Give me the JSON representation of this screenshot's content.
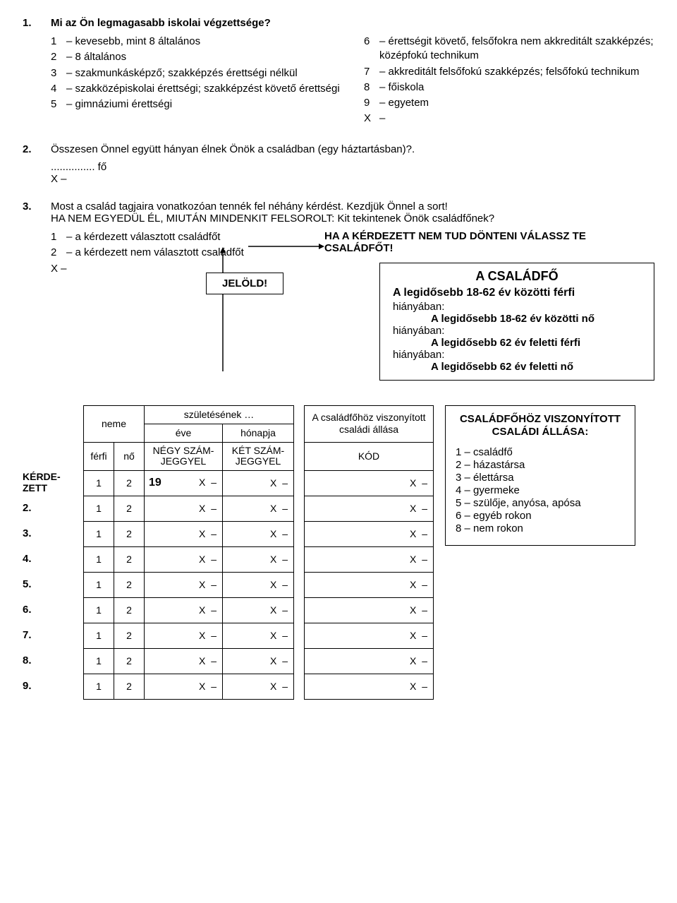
{
  "q1": {
    "num": "1.",
    "text": "Mi az Ön legmagasabb iskolai végzettsége?",
    "left": [
      {
        "n": "1",
        "t": "– kevesebb, mint 8 általános"
      },
      {
        "n": "2",
        "t": "– 8 általános"
      },
      {
        "n": "3",
        "t": "– szakmunkásképző; szakképzés érettségi nélkül"
      },
      {
        "n": "4",
        "t": "– szakközépiskolai érettségi; szakképzést követő érettségi"
      },
      {
        "n": "5",
        "t": "– gimnáziumi érettségi"
      }
    ],
    "right": [
      {
        "n": "6",
        "t": "– érettségit követő, felsőfokra nem akkreditált szakképzés; középfokú technikum"
      },
      {
        "n": "7",
        "t": "– akkreditált felsőfokú szakképzés; felsőfokú technikum"
      },
      {
        "n": "8",
        "t": "– főiskola"
      },
      {
        "n": "9",
        "t": "– egyetem"
      },
      {
        "n": "X",
        "t": "–"
      }
    ]
  },
  "q2": {
    "num": "2.",
    "text": "Összesen Önnel együtt hányan élnek Önök a családban (egy háztartásban)?.",
    "dots": "............... fő",
    "x": "X –"
  },
  "q3": {
    "num": "3.",
    "text": "Most a család tagjaira vonatkozóan tennék fel néhány kérdést. Kezdjük Önnel a sort!",
    "line2": "HA NEM EGYEDÜL ÉL, MIUTÁN MINDENKIT FELSOROLT: Kit tekintenek Önök családfőnek?",
    "opts": [
      {
        "n": "1",
        "t": "– a kérdezett választott családfőt"
      },
      {
        "n": "2",
        "t": "– a kérdezett nem választott családfőt"
      }
    ],
    "x": "X –",
    "jelold": "JELÖLD!",
    "rhint": "HA A KÉRDEZETT NEM TUD DÖNTENI VÁLASSZ TE CSALÁDFŐT!",
    "box": {
      "title": "A CSALÁDFŐ",
      "sub": "A legidősebb 18-62 év közötti férfi",
      "lines": [
        "hiányában:",
        "A legidősebb 18-62 év közötti nő",
        "hiányában:",
        "A legidősebb 62 év feletti férfi",
        "hiányában:",
        "A legidősebb 62 év feletti nő"
      ]
    }
  },
  "table": {
    "labels": [
      "KÉRDE-\nZETT",
      "2.",
      "3.",
      "4.",
      "5.",
      "6.",
      "7.",
      "8.",
      "9."
    ],
    "head": {
      "neme": "neme",
      "szul": "születésének …",
      "eve": "éve",
      "honap": "hónapja",
      "negy": "NÉGY SZÁM-\nJEGGYEL",
      "ket": "KÉT SZÁM-\nJEGGYEL",
      "ferfi": "férfi",
      "no": "nő",
      "visz": "A családfőhöz viszonyított családi állása",
      "kod": "KÓD"
    },
    "nineteen": "19",
    "one": "1",
    "two": "2",
    "x": "X –"
  },
  "rbox": {
    "title": "CSALÁDFŐHÖZ VISZONYÍTOTT CSALÁDI ÁLLÁSA:",
    "items": [
      "1 – családfő",
      "2 – házastársa",
      "3 – élettársa",
      "4 – gyermeke",
      "5 – szülője, anyósa, apósa",
      "6 – egyéb rokon",
      "8 – nem rokon"
    ]
  }
}
